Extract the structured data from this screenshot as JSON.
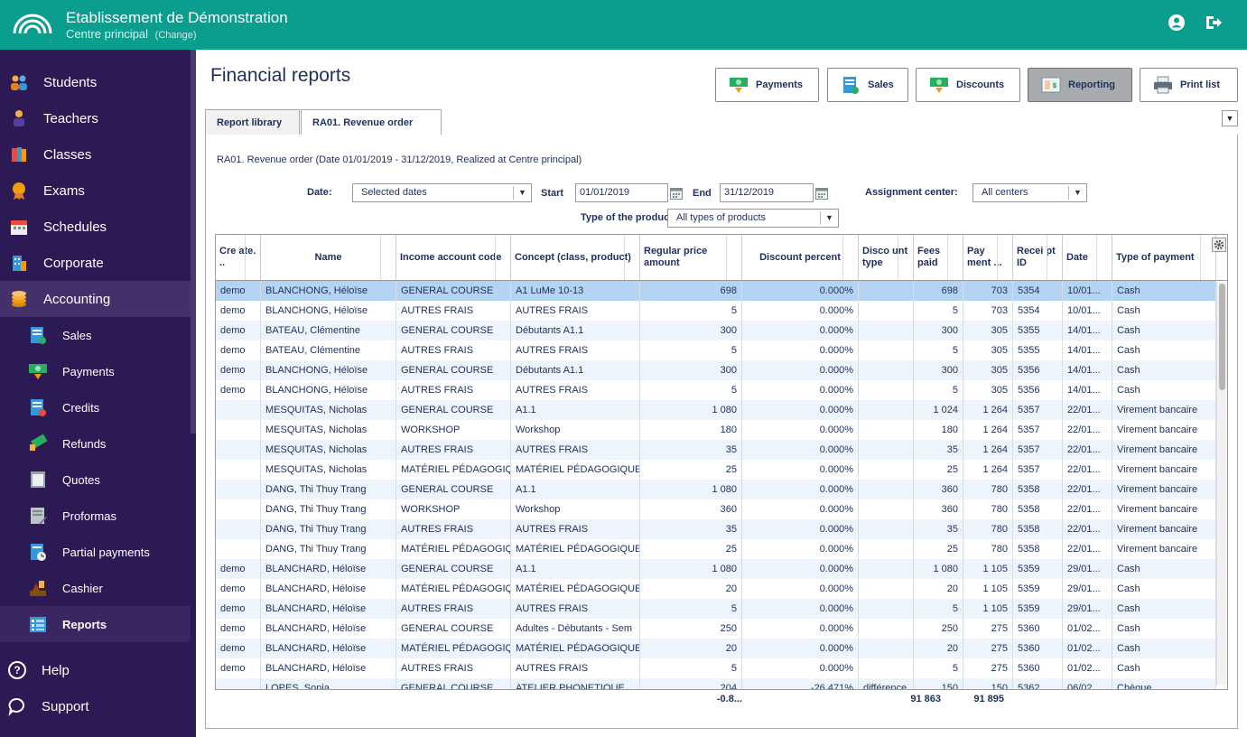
{
  "header": {
    "org_name": "Etablissement de Démonstration",
    "org_sub": "Centre principal",
    "change_label": "(Change)"
  },
  "sidebar": {
    "items": [
      {
        "label": "Students",
        "icon": "students-icon"
      },
      {
        "label": "Teachers",
        "icon": "teacher-icon"
      },
      {
        "label": "Classes",
        "icon": "books-icon"
      },
      {
        "label": "Exams",
        "icon": "medal-icon"
      },
      {
        "label": "Schedules",
        "icon": "calendar-icon"
      },
      {
        "label": "Corporate",
        "icon": "building-icon"
      },
      {
        "label": "Accounting",
        "icon": "coins-icon"
      }
    ],
    "sub_items": [
      {
        "label": "Sales",
        "icon": "sales-icon"
      },
      {
        "label": "Payments",
        "icon": "payment-icon"
      },
      {
        "label": "Credits",
        "icon": "credit-icon"
      },
      {
        "label": "Refunds",
        "icon": "refund-icon"
      },
      {
        "label": "Quotes",
        "icon": "quote-icon"
      },
      {
        "label": "Proformas",
        "icon": "proforma-icon"
      },
      {
        "label": "Partial payments",
        "icon": "partial-payment-icon"
      },
      {
        "label": "Cashier",
        "icon": "cashier-icon"
      },
      {
        "label": "Reports",
        "icon": "reports-icon"
      }
    ],
    "bottom": [
      {
        "label": "Help",
        "icon": "help-icon"
      },
      {
        "label": "Support",
        "icon": "support-icon"
      }
    ]
  },
  "page": {
    "title": "Financial reports"
  },
  "toolbar": {
    "payments": "Payments",
    "sales": "Sales",
    "discounts": "Discounts",
    "reporting": "Reporting",
    "print": "Print list"
  },
  "tabs": {
    "library": "Report library",
    "current": "RA01. Revenue order"
  },
  "report": {
    "description": "RA01. Revenue order (Date 01/01/2019 - 31/12/2019, Realized at Centre principal)"
  },
  "filters": {
    "date_label": "Date:",
    "date_value": "Selected dates",
    "start_label": "Start",
    "start_value": "01/01/2019",
    "end_label": "End",
    "end_value": "31/12/2019",
    "center_label": "Assignment center:",
    "center_value": "All centers",
    "product_label": "Type of the product:",
    "product_value": "All types of products"
  },
  "table": {
    "headers": {
      "created": "Cre ate. ..",
      "name": "Name",
      "account": "Income account code",
      "concept": "Concept (class, product)",
      "regular": "Regular price amount",
      "discount": "Discount percent",
      "dtype": "Disco unt type",
      "fees": "Fees paid",
      "payment": "Pay ment ...",
      "receipt": "Recei pt ID",
      "date": "Date",
      "ptype": "Type of payment"
    },
    "rows": [
      [
        "demo",
        "BLANCHONG, Héloïse",
        "GENERAL COURSE",
        "A1 LuMe 10-13",
        "698",
        "0.000%",
        "",
        "698",
        "703",
        "5354",
        "10/01...",
        "Cash"
      ],
      [
        "demo",
        "BLANCHONG, Héloïse",
        "AUTRES FRAIS",
        "AUTRES FRAIS",
        "5",
        "0.000%",
        "",
        "5",
        "703",
        "5354",
        "10/01...",
        "Cash"
      ],
      [
        "demo",
        "BATEAU, Clémentine",
        "GENERAL COURSE",
        "Débutants A1.1",
        "300",
        "0.000%",
        "",
        "300",
        "305",
        "5355",
        "14/01...",
        "Cash"
      ],
      [
        "demo",
        "BATEAU, Clémentine",
        "AUTRES FRAIS",
        "AUTRES FRAIS",
        "5",
        "0.000%",
        "",
        "5",
        "305",
        "5355",
        "14/01...",
        "Cash"
      ],
      [
        "demo",
        "BLANCHONG, Héloïse",
        "GENERAL COURSE",
        "Débutants A1.1",
        "300",
        "0.000%",
        "",
        "300",
        "305",
        "5356",
        "14/01...",
        "Cash"
      ],
      [
        "demo",
        "BLANCHONG, Héloïse",
        "AUTRES FRAIS",
        "AUTRES FRAIS",
        "5",
        "0.000%",
        "",
        "5",
        "305",
        "5356",
        "14/01...",
        "Cash"
      ],
      [
        "",
        "MESQUITAS, Nicholas",
        "GENERAL COURSE",
        "A1.1",
        "1 080",
        "0.000%",
        "",
        "1 024",
        "1 264",
        "5357",
        "22/01...",
        "Virement bancaire"
      ],
      [
        "",
        "MESQUITAS, Nicholas",
        "WORKSHOP",
        "Workshop",
        "180",
        "0.000%",
        "",
        "180",
        "1 264",
        "5357",
        "22/01...",
        "Virement bancaire"
      ],
      [
        "",
        "MESQUITAS, Nicholas",
        "AUTRES FRAIS",
        "AUTRES FRAIS",
        "35",
        "0.000%",
        "",
        "35",
        "1 264",
        "5357",
        "22/01...",
        "Virement bancaire"
      ],
      [
        "",
        "MESQUITAS, Nicholas",
        "MATÉRIEL PÉDAGOGIQ",
        "MATÉRIEL PÉDAGOGIQUE",
        "25",
        "0.000%",
        "",
        "25",
        "1 264",
        "5357",
        "22/01...",
        "Virement bancaire"
      ],
      [
        "",
        "DANG, Thi Thuy Trang",
        "GENERAL COURSE",
        "A1.1",
        "1 080",
        "0.000%",
        "",
        "360",
        "780",
        "5358",
        "22/01...",
        "Virement bancaire"
      ],
      [
        "",
        "DANG, Thi Thuy Trang",
        "WORKSHOP",
        "Workshop",
        "360",
        "0.000%",
        "",
        "360",
        "780",
        "5358",
        "22/01...",
        "Virement bancaire"
      ],
      [
        "",
        "DANG, Thi Thuy Trang",
        "AUTRES FRAIS",
        "AUTRES FRAIS",
        "35",
        "0.000%",
        "",
        "35",
        "780",
        "5358",
        "22/01...",
        "Virement bancaire"
      ],
      [
        "",
        "DANG, Thi Thuy Trang",
        "MATÉRIEL PÉDAGOGIQ",
        "MATÉRIEL PÉDAGOGIQUE",
        "25",
        "0.000%",
        "",
        "25",
        "780",
        "5358",
        "22/01...",
        "Virement bancaire"
      ],
      [
        "demo",
        "BLANCHARD, Héloïse",
        "GENERAL COURSE",
        "A1.1",
        "1 080",
        "0.000%",
        "",
        "1 080",
        "1 105",
        "5359",
        "29/01...",
        "Cash"
      ],
      [
        "demo",
        "BLANCHARD, Héloïse",
        "MATÉRIEL PÉDAGOGIQ",
        "MATÉRIEL PÉDAGOGIQUE",
        "20",
        "0.000%",
        "",
        "20",
        "1 105",
        "5359",
        "29/01...",
        "Cash"
      ],
      [
        "demo",
        "BLANCHARD, Héloïse",
        "AUTRES FRAIS",
        "AUTRES FRAIS",
        "5",
        "0.000%",
        "",
        "5",
        "1 105",
        "5359",
        "29/01...",
        "Cash"
      ],
      [
        "demo",
        "BLANCHARD, Héloïse",
        "GENERAL COURSE",
        "Adultes - Débutants - Sem",
        "250",
        "0.000%",
        "",
        "250",
        "275",
        "5360",
        "01/02...",
        "Cash"
      ],
      [
        "demo",
        "BLANCHARD, Héloïse",
        "MATÉRIEL PÉDAGOGIQ",
        "MATÉRIEL PÉDAGOGIQUE",
        "20",
        "0.000%",
        "",
        "20",
        "275",
        "5360",
        "01/02...",
        "Cash"
      ],
      [
        "demo",
        "BLANCHARD, Héloïse",
        "AUTRES FRAIS",
        "AUTRES FRAIS",
        "5",
        "0.000%",
        "",
        "5",
        "275",
        "5360",
        "01/02...",
        "Cash"
      ],
      [
        "",
        "LOPES, Sonia",
        "GENERAL COURSE",
        "ATELIER PHONETIQUE",
        "204",
        "-26.471%",
        "différence",
        "150",
        "150",
        "5362",
        "06/02...",
        "Chèque"
      ]
    ],
    "totals": {
      "regular": "-0.8...",
      "fees": "91 863",
      "payment": "91 895"
    }
  }
}
